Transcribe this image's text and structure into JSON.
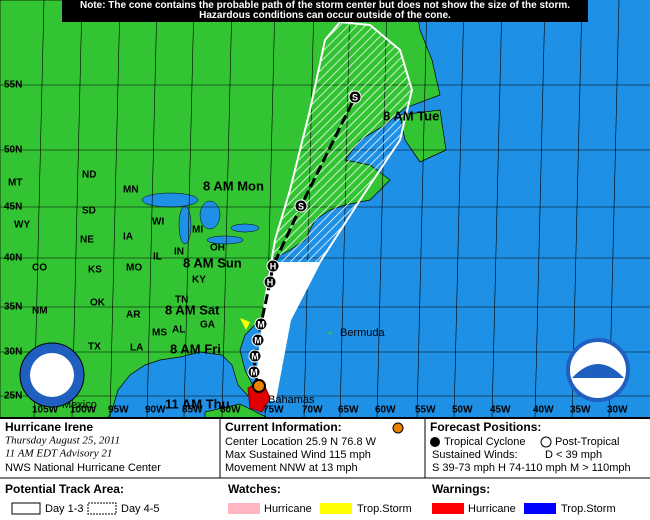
{
  "note": "Note: The cone contains the probable path of the storm center but does not show the size of the storm. Hazardous conditions can occur outside of the cone.",
  "map": {
    "lat_labels": [
      "55N",
      "50N",
      "45N",
      "40N",
      "35N",
      "30N",
      "25N"
    ],
    "lon_labels": [
      "105W",
      "100W",
      "95W",
      "90W",
      "85W",
      "80W",
      "75W",
      "70W",
      "65W",
      "60W",
      "55W",
      "50W",
      "45W",
      "40W",
      "35W",
      "30W"
    ],
    "states": [
      "MT",
      "ND",
      "SD",
      "WY",
      "MN",
      "WI",
      "MI",
      "NE",
      "IA",
      "IL",
      "IN",
      "OH",
      "CO",
      "KS",
      "MO",
      "KY",
      "NM",
      "OK",
      "AR",
      "TN",
      "TX",
      "LA",
      "MS",
      "AL",
      "GA"
    ],
    "places": [
      "Bermuda",
      "Bahamas",
      "Mexico"
    ],
    "day_labels": [
      "8 AM Tue",
      "8 AM Mon",
      "8 AM Sun",
      "8 AM Sat",
      "8 AM Fri",
      "11 AM Thu"
    ],
    "track_points": [
      "M",
      "M",
      "M",
      "M",
      "H",
      "H",
      "S",
      "S"
    ]
  },
  "storm": {
    "name": "Hurricane Irene",
    "date": "Thursday  August 25, 2011",
    "advisory": "11 AM EDT Advisory 21",
    "center": "NWS National Hurricane Center"
  },
  "current": {
    "title": "Current Information:",
    "location": "Center Location 25.9 N  76.8 W",
    "wind": "Max Sustained Wind  115 mph",
    "movement": "Movement NNW at  13 mph"
  },
  "forecast": {
    "title": "Forecast Positions:",
    "tropical": "Tropical Cyclone",
    "post_tropical": "Post-Tropical",
    "winds_title": "Sustained Winds:",
    "d": "D  < 39 mph",
    "scale": "S  39-73 mph  H  74-110 mph  M  > 110mph"
  },
  "legend": {
    "track_title": "Potential Track Area:",
    "day13": "Day 1-3",
    "day45": "Day 4-5",
    "watches_title": "Watches:",
    "watch_hurricane": "Hurricane",
    "watch_ts": "Trop.Storm",
    "warnings_title": "Warnings:",
    "warn_hurricane": "Hurricane",
    "warn_ts": "Trop.Storm"
  }
}
